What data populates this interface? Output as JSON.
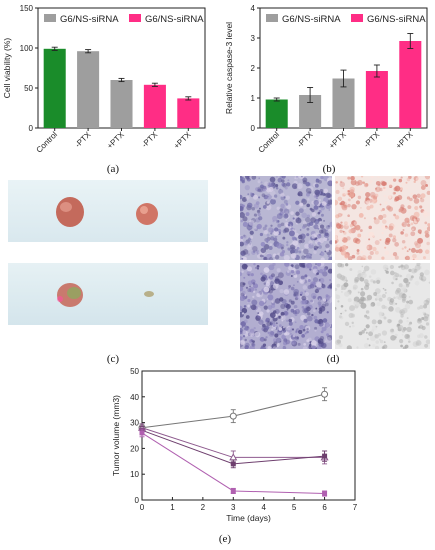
{
  "panel_labels": {
    "a": "(a)",
    "b": "(b)",
    "c": "(c)",
    "d": "(d)",
    "e": "(e)"
  },
  "chart_data": [
    {
      "id": "a",
      "type": "bar",
      "categories": [
        "Control",
        "-PTX",
        "+PTX",
        "-PTX",
        "+PTX"
      ],
      "values": [
        99,
        96,
        60,
        54,
        37
      ],
      "errors": [
        2,
        2,
        2,
        2,
        2
      ],
      "bar_colors": [
        "#1a8c2a",
        "#9e9e9e",
        "#9e9e9e",
        "#ff2d85",
        "#ff2d85"
      ],
      "ylabel": "Cell viability (%)",
      "ylim": [
        0,
        150
      ],
      "yticks": [
        0,
        50,
        100,
        150
      ],
      "legend": [
        {
          "label": "G6/NS-siRNA",
          "color": "#9e9e9e"
        },
        {
          "label": "G6/NS-siRNA",
          "color": "#ff2d85"
        }
      ]
    },
    {
      "id": "b",
      "type": "bar",
      "categories": [
        "Control",
        "-PTX",
        "+PTX",
        "-PTX",
        "+PTX"
      ],
      "values": [
        0.95,
        1.1,
        1.65,
        1.9,
        2.9
      ],
      "errors": [
        0.05,
        0.25,
        0.28,
        0.2,
        0.25
      ],
      "bar_colors": [
        "#1a8c2a",
        "#9e9e9e",
        "#9e9e9e",
        "#ff2d85",
        "#ff2d85"
      ],
      "ylabel": "Relative caspase-3 level",
      "ylim": [
        0,
        4
      ],
      "yticks": [
        0,
        1,
        2,
        3,
        4
      ],
      "legend": [
        {
          "label": "G6/NS-siRNA",
          "color": "#9e9e9e"
        },
        {
          "label": "G6/NS-siRNA",
          "color": "#ff2d85"
        }
      ]
    },
    {
      "id": "e",
      "type": "line",
      "xlabel": "Time (days)",
      "ylabel": "Tumor volume (mm3)",
      "xlim": [
        0,
        7
      ],
      "ylim": [
        0,
        50
      ],
      "xticks": [
        0,
        1,
        2,
        3,
        4,
        5,
        6,
        7
      ],
      "yticks": [
        0,
        10,
        20,
        30,
        40,
        50
      ],
      "series": [
        {
          "marker": "circle-open",
          "color": "#777777",
          "points": [
            [
              0,
              28
            ],
            [
              3,
              32.5
            ],
            [
              6,
              41
            ]
          ],
          "errors": [
            1.5,
            2.5,
            2.5
          ]
        },
        {
          "marker": "triangle-open",
          "color": "#8e5a8e",
          "points": [
            [
              0,
              28
            ],
            [
              3,
              16.5
            ],
            [
              6,
              16.5
            ]
          ],
          "errors": [
            1.5,
            2.5,
            2.5
          ]
        },
        {
          "marker": "square",
          "color": "#6e3f6e",
          "points": [
            [
              0,
              27
            ],
            [
              3,
              14
            ],
            [
              6,
              17
            ]
          ],
          "errors": [
            1.5,
            1.5,
            2
          ]
        },
        {
          "marker": "square",
          "color": "#b060b0",
          "points": [
            [
              0,
              26
            ],
            [
              3,
              3.5
            ],
            [
              6,
              2.5
            ]
          ],
          "errors": [
            1.5,
            1,
            1
          ]
        }
      ]
    }
  ]
}
